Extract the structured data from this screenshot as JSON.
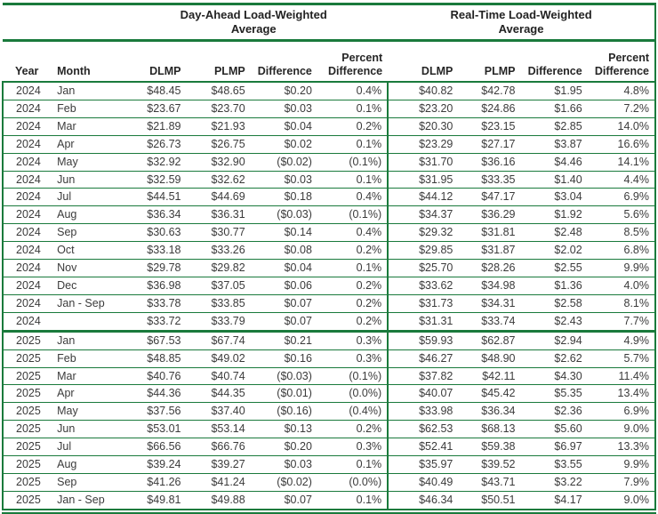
{
  "table": {
    "group_headers": [
      {
        "line1": "Day-Ahead Load-Weighted",
        "line2": "Average"
      },
      {
        "line1": "Real-Time Load-Weighted",
        "line2": "Average"
      }
    ],
    "columns": [
      "Year",
      "Month",
      "DLMP",
      "PLMP",
      "Difference",
      "Percent Difference",
      "DLMP",
      "PLMP",
      "Difference",
      "Percent Difference"
    ],
    "rows": [
      [
        "2024",
        "Jan",
        "$48.45",
        "$48.65",
        "$0.20",
        "0.4%",
        "$40.82",
        "$42.78",
        "$1.95",
        "4.8%"
      ],
      [
        "2024",
        "Feb",
        "$23.67",
        "$23.70",
        "$0.03",
        "0.1%",
        "$23.20",
        "$24.86",
        "$1.66",
        "7.2%"
      ],
      [
        "2024",
        "Mar",
        "$21.89",
        "$21.93",
        "$0.04",
        "0.2%",
        "$20.30",
        "$23.15",
        "$2.85",
        "14.0%"
      ],
      [
        "2024",
        "Apr",
        "$26.73",
        "$26.75",
        "$0.02",
        "0.1%",
        "$23.29",
        "$27.17",
        "$3.87",
        "16.6%"
      ],
      [
        "2024",
        "May",
        "$32.92",
        "$32.90",
        "($0.02)",
        "(0.1%)",
        "$31.70",
        "$36.16",
        "$4.46",
        "14.1%"
      ],
      [
        "2024",
        "Jun",
        "$32.59",
        "$32.62",
        "$0.03",
        "0.1%",
        "$31.95",
        "$33.35",
        "$1.40",
        "4.4%"
      ],
      [
        "2024",
        "Jul",
        "$44.51",
        "$44.69",
        "$0.18",
        "0.4%",
        "$44.12",
        "$47.17",
        "$3.04",
        "6.9%"
      ],
      [
        "2024",
        "Aug",
        "$36.34",
        "$36.31",
        "($0.03)",
        "(0.1%)",
        "$34.37",
        "$36.29",
        "$1.92",
        "5.6%"
      ],
      [
        "2024",
        "Sep",
        "$30.63",
        "$30.77",
        "$0.14",
        "0.4%",
        "$29.32",
        "$31.81",
        "$2.48",
        "8.5%"
      ],
      [
        "2024",
        "Oct",
        "$33.18",
        "$33.26",
        "$0.08",
        "0.2%",
        "$29.85",
        "$31.87",
        "$2.02",
        "6.8%"
      ],
      [
        "2024",
        "Nov",
        "$29.78",
        "$29.82",
        "$0.04",
        "0.1%",
        "$25.70",
        "$28.26",
        "$2.55",
        "9.9%"
      ],
      [
        "2024",
        "Dec",
        "$36.98",
        "$37.05",
        "$0.06",
        "0.2%",
        "$33.62",
        "$34.98",
        "$1.36",
        "4.0%"
      ],
      [
        "2024",
        "Jan - Sep",
        "$33.78",
        "$33.85",
        "$0.07",
        "0.2%",
        "$31.73",
        "$34.31",
        "$2.58",
        "8.1%"
      ],
      [
        "2024",
        "",
        "$33.72",
        "$33.79",
        "$0.07",
        "0.2%",
        "$31.31",
        "$33.74",
        "$2.43",
        "7.7%"
      ],
      [
        "2025",
        "Jan",
        "$67.53",
        "$67.74",
        "$0.21",
        "0.3%",
        "$59.93",
        "$62.87",
        "$2.94",
        "4.9%"
      ],
      [
        "2025",
        "Feb",
        "$48.85",
        "$49.02",
        "$0.16",
        "0.3%",
        "$46.27",
        "$48.90",
        "$2.62",
        "5.7%"
      ],
      [
        "2025",
        "Mar",
        "$40.76",
        "$40.74",
        "($0.03)",
        "(0.1%)",
        "$37.82",
        "$42.11",
        "$4.30",
        "11.4%"
      ],
      [
        "2025",
        "Apr",
        "$44.36",
        "$44.35",
        "($0.01)",
        "(0.0%)",
        "$40.07",
        "$45.42",
        "$5.35",
        "13.4%"
      ],
      [
        "2025",
        "May",
        "$37.56",
        "$37.40",
        "($0.16)",
        "(0.4%)",
        "$33.98",
        "$36.34",
        "$2.36",
        "6.9%"
      ],
      [
        "2025",
        "Jun",
        "$53.01",
        "$53.14",
        "$0.13",
        "0.2%",
        "$62.53",
        "$68.13",
        "$5.60",
        "9.0%"
      ],
      [
        "2025",
        "Jul",
        "$66.56",
        "$66.76",
        "$0.20",
        "0.3%",
        "$52.41",
        "$59.38",
        "$6.97",
        "13.3%"
      ],
      [
        "2025",
        "Aug",
        "$39.24",
        "$39.27",
        "$0.03",
        "0.1%",
        "$35.97",
        "$39.52",
        "$3.55",
        "9.9%"
      ],
      [
        "2025",
        "Sep",
        "$41.26",
        "$41.24",
        "($0.02)",
        "(0.0%)",
        "$40.49",
        "$43.71",
        "$3.22",
        "7.9%"
      ],
      [
        "2025",
        "Jan - Sep",
        "$49.81",
        "$49.88",
        "$0.07",
        "0.1%",
        "$46.34",
        "$50.51",
        "$4.17",
        "9.0%"
      ]
    ],
    "accent_color": "#1A7A3C"
  }
}
